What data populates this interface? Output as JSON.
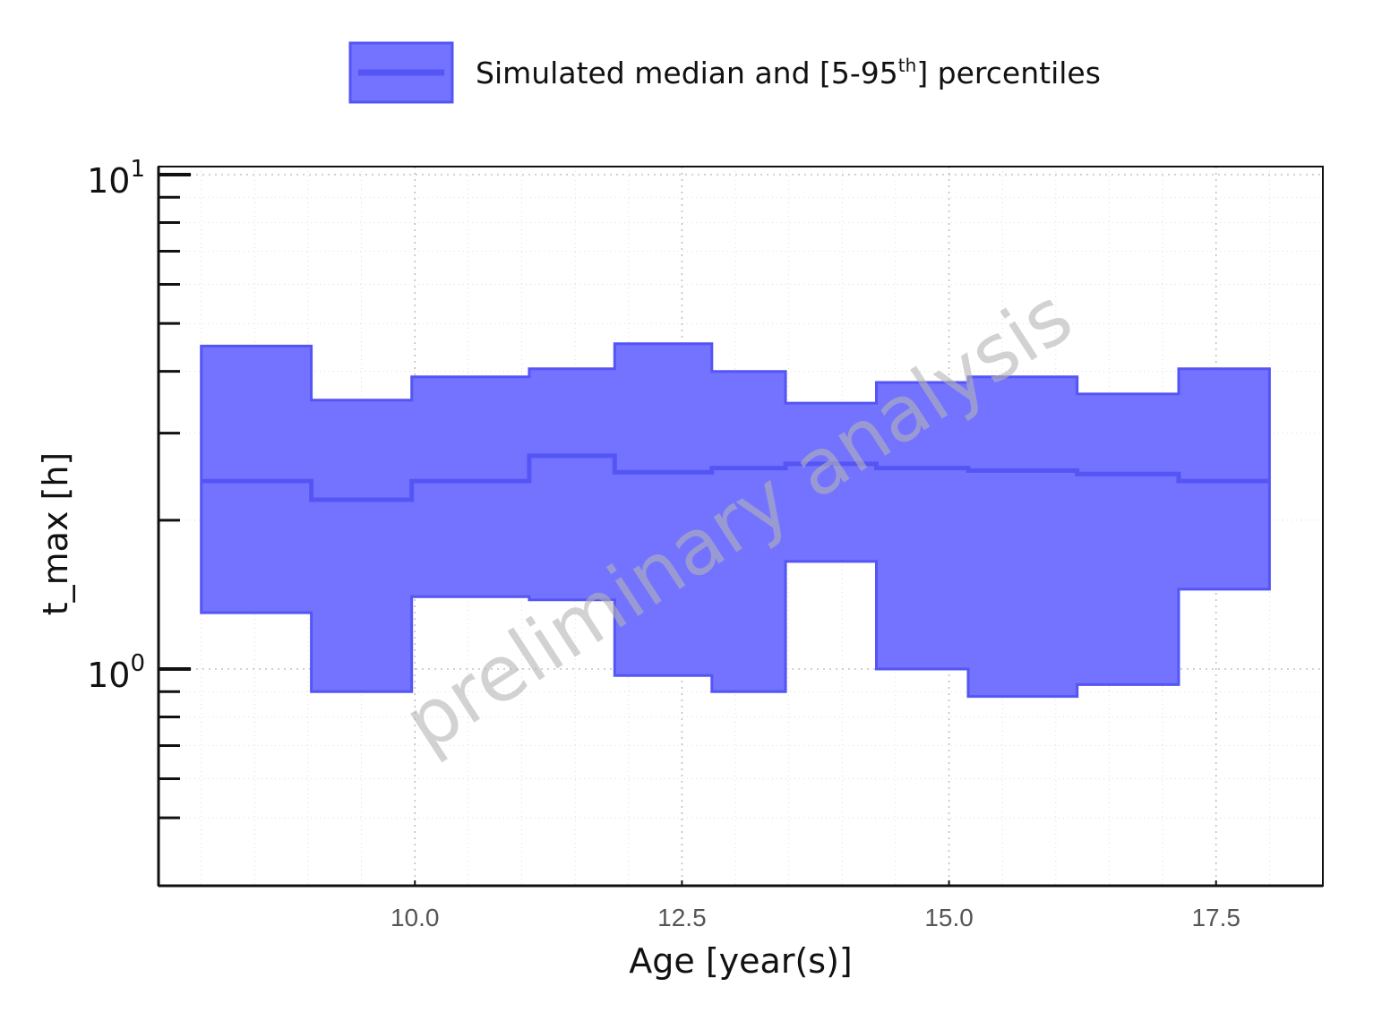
{
  "chart_data": {
    "type": "area",
    "title": "",
    "xlabel": "Age [year(s)]",
    "ylabel": "t_max [h]",
    "xlim": [
      7.6,
      18.5
    ],
    "ylim": [
      0.5,
      10
    ],
    "yscale": "log",
    "grid": true,
    "legend_position": "top-center",
    "watermark": "preliminary analysis",
    "x_ticks": [
      {
        "value": 10.0,
        "label": "10.0"
      },
      {
        "value": 12.5,
        "label": "12.5"
      },
      {
        "value": 15.0,
        "label": "15.0"
      },
      {
        "value": 17.5,
        "label": "17.5"
      }
    ],
    "y_ticks": [
      {
        "value": 1,
        "base": "10",
        "exponent": "0"
      },
      {
        "value": 10,
        "base": "10",
        "exponent": "1"
      }
    ],
    "legend": {
      "label": "Simulated median and [5-95",
      "sup": "th",
      "suffix": "] percentiles"
    },
    "colors": {
      "fill": "#7373ff",
      "line": "#5555f5",
      "axis": "#111111",
      "grid": "#bbbbbb"
    },
    "bin_edges": [
      8.0,
      9.03,
      9.97,
      11.07,
      11.87,
      12.78,
      13.47,
      14.32,
      15.18,
      16.2,
      17.15,
      18.0
    ],
    "series": [
      {
        "name": "median",
        "values": [
          2.4,
          2.2,
          2.4,
          2.7,
          2.5,
          2.55,
          2.6,
          2.55,
          2.52,
          2.48,
          2.4
        ]
      },
      {
        "name": "p95",
        "values": [
          4.5,
          3.5,
          3.9,
          4.05,
          4.55,
          4.0,
          3.45,
          3.8,
          3.9,
          3.6,
          4.05
        ]
      },
      {
        "name": "p5",
        "values": [
          1.3,
          0.9,
          1.4,
          1.38,
          0.97,
          0.9,
          1.65,
          1.0,
          0.88,
          0.93,
          1.45
        ]
      }
    ]
  }
}
